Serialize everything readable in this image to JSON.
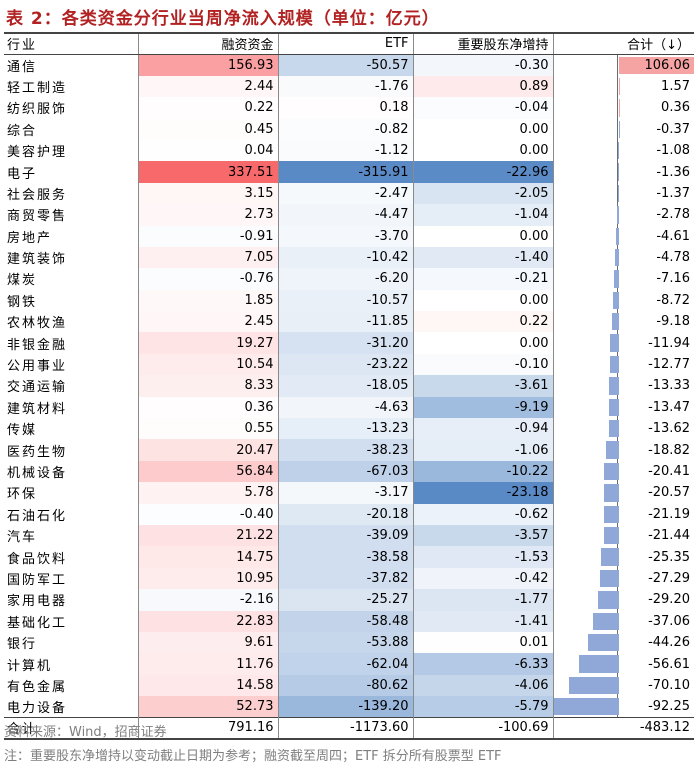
{
  "title": "表 2：各类资金分行业当周净流入规模（单位：亿元）",
  "headers": [
    "行业",
    "融资资金",
    "ETF",
    "重要股东净增持",
    "合计（↓）"
  ],
  "rows": [
    {
      "name": "通信",
      "financing": "156.93",
      "etf": "-50.57",
      "holder": "-0.30",
      "total": "106.06"
    },
    {
      "name": "轻工制造",
      "financing": "2.44",
      "etf": "-1.76",
      "holder": "0.89",
      "total": "1.57"
    },
    {
      "name": "纺织服饰",
      "financing": "0.22",
      "etf": "0.18",
      "holder": "-0.04",
      "total": "0.36"
    },
    {
      "name": "综合",
      "financing": "0.45",
      "etf": "-0.82",
      "holder": "0.00",
      "total": "-0.37"
    },
    {
      "name": "美容护理",
      "financing": "0.04",
      "etf": "-1.12",
      "holder": "0.00",
      "total": "-1.08"
    },
    {
      "name": "电子",
      "financing": "337.51",
      "etf": "-315.91",
      "holder": "-22.96",
      "total": "-1.36"
    },
    {
      "name": "社会服务",
      "financing": "3.15",
      "etf": "-2.47",
      "holder": "-2.05",
      "total": "-1.37"
    },
    {
      "name": "商贸零售",
      "financing": "2.73",
      "etf": "-4.47",
      "holder": "-1.04",
      "total": "-2.78"
    },
    {
      "name": "房地产",
      "financing": "-0.91",
      "etf": "-3.70",
      "holder": "0.00",
      "total": "-4.61"
    },
    {
      "name": "建筑装饰",
      "financing": "7.05",
      "etf": "-10.42",
      "holder": "-1.40",
      "total": "-4.78"
    },
    {
      "name": "煤炭",
      "financing": "-0.76",
      "etf": "-6.20",
      "holder": "-0.21",
      "total": "-7.16"
    },
    {
      "name": "钢铁",
      "financing": "1.85",
      "etf": "-10.57",
      "holder": "0.00",
      "total": "-8.72"
    },
    {
      "name": "农林牧渔",
      "financing": "2.45",
      "etf": "-11.85",
      "holder": "0.22",
      "total": "-9.18"
    },
    {
      "name": "非银金融",
      "financing": "19.27",
      "etf": "-31.20",
      "holder": "0.00",
      "total": "-11.94"
    },
    {
      "name": "公用事业",
      "financing": "10.54",
      "etf": "-23.22",
      "holder": "-0.10",
      "total": "-12.77"
    },
    {
      "name": "交通运输",
      "financing": "8.33",
      "etf": "-18.05",
      "holder": "-3.61",
      "total": "-13.33"
    },
    {
      "name": "建筑材料",
      "financing": "0.36",
      "etf": "-4.63",
      "holder": "-9.19",
      "total": "-13.47"
    },
    {
      "name": "传媒",
      "financing": "0.55",
      "etf": "-13.23",
      "holder": "-0.94",
      "total": "-13.62"
    },
    {
      "name": "医药生物",
      "financing": "20.47",
      "etf": "-38.23",
      "holder": "-1.06",
      "total": "-18.82"
    },
    {
      "name": "机械设备",
      "financing": "56.84",
      "etf": "-67.03",
      "holder": "-10.22",
      "total": "-20.41"
    },
    {
      "name": "环保",
      "financing": "5.78",
      "etf": "-3.17",
      "holder": "-23.18",
      "total": "-20.57"
    },
    {
      "name": "石油石化",
      "financing": "-0.40",
      "etf": "-20.18",
      "holder": "-0.62",
      "total": "-21.19"
    },
    {
      "name": "汽车",
      "financing": "21.22",
      "etf": "-39.09",
      "holder": "-3.57",
      "total": "-21.44"
    },
    {
      "name": "食品饮料",
      "financing": "14.75",
      "etf": "-38.58",
      "holder": "-1.53",
      "total": "-25.35"
    },
    {
      "name": "国防军工",
      "financing": "10.95",
      "etf": "-37.82",
      "holder": "-0.42",
      "total": "-27.29"
    },
    {
      "name": "家用电器",
      "financing": "-2.16",
      "etf": "-25.27",
      "holder": "-1.77",
      "total": "-29.20"
    },
    {
      "name": "基础化工",
      "financing": "22.83",
      "etf": "-58.48",
      "holder": "-1.41",
      "total": "-37.06"
    },
    {
      "name": "银行",
      "financing": "9.61",
      "etf": "-53.88",
      "holder": "0.01",
      "total": "-44.26"
    },
    {
      "name": "计算机",
      "financing": "11.76",
      "etf": "-62.04",
      "holder": "-6.33",
      "total": "-56.61"
    },
    {
      "name": "有色金属",
      "financing": "14.58",
      "etf": "-80.62",
      "holder": "-4.06",
      "total": "-70.10"
    },
    {
      "name": "电力设备",
      "financing": "52.73",
      "etf": "-139.20",
      "holder": "-5.79",
      "total": "-92.25"
    }
  ],
  "total_row": {
    "name": "合计",
    "financing": "791.16",
    "etf": "-1173.60",
    "holder": "-100.69",
    "total": "-483.12"
  },
  "source": "资料来源：Wind，招商证券",
  "note": "注：重要股东净增持以变动截止日期为参考；融资截至周四；ETF 拆分所有股票型 ETF",
  "colors": {
    "pos_strong": "#f8696b",
    "neg_strong": "#5a8ac6",
    "bar_neg": "#8fa8d8",
    "bar_pos": "#f5a3a3"
  }
}
